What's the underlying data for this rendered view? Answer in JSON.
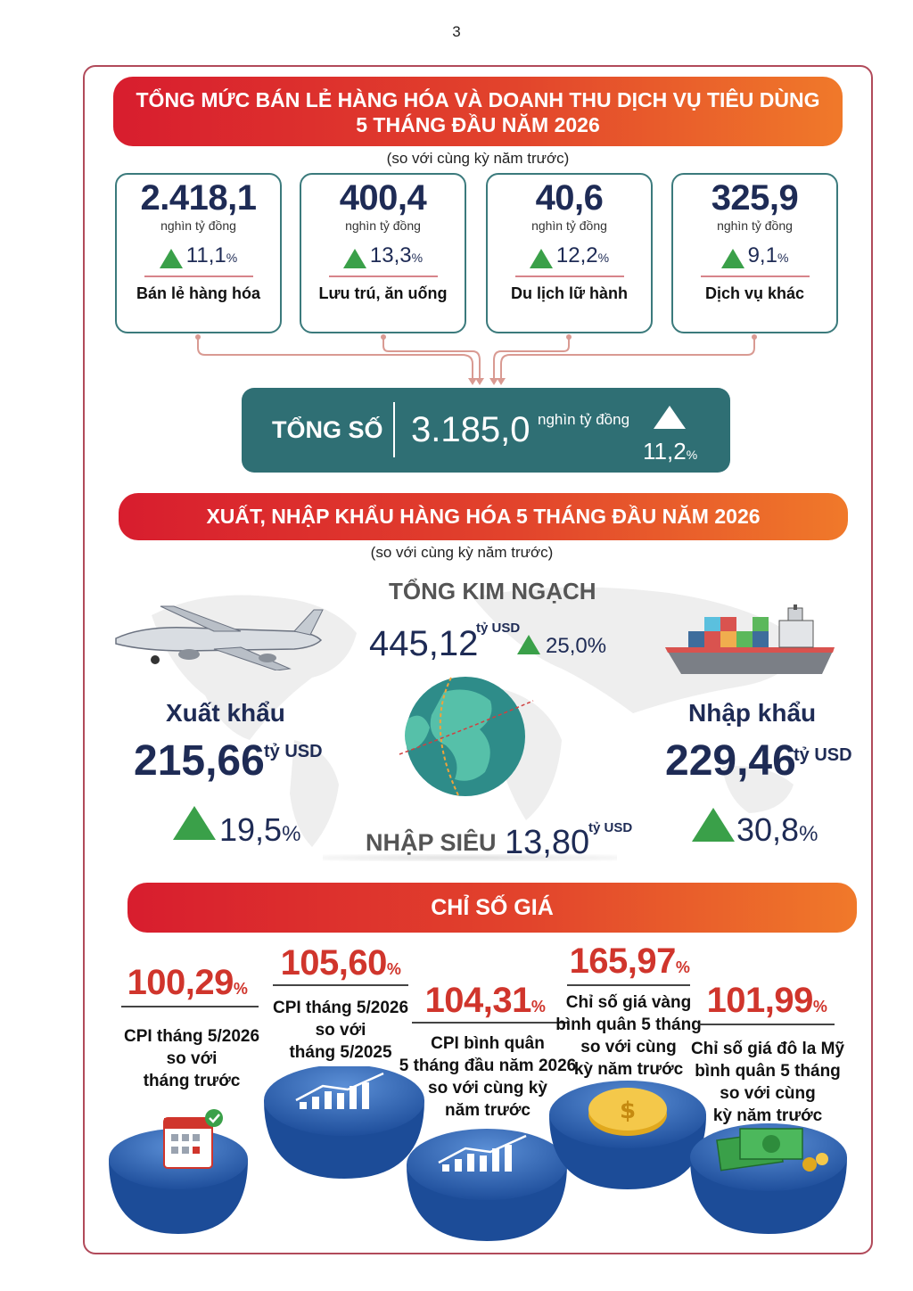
{
  "page_number": "3",
  "retail": {
    "title_line1": "TỔNG MỨC BÁN LẺ HÀNG HÓA VÀ DOANH THU DỊCH VỤ TIÊU DÙNG",
    "title_line2": "5 THÁNG ĐẦU NĂM 2026",
    "note": "(so với cùng kỳ năm trước)",
    "cards": [
      {
        "value": "2.418,1",
        "unit": "nghìn tỷ đồng",
        "pct": "11,1",
        "pct_sign": "%",
        "label": "Bán lẻ hàng hóa"
      },
      {
        "value": "400,4",
        "unit": "nghìn tỷ đồng",
        "pct": "13,3",
        "pct_sign": "%",
        "label": "Lưu trú, ăn uống"
      },
      {
        "value": "40,6",
        "unit": "nghìn tỷ đồng",
        "pct": "12,2",
        "pct_sign": "%",
        "label": "Du lịch lữ hành"
      },
      {
        "value": "325,9",
        "unit": "nghìn tỷ đồng",
        "pct": "9,1",
        "pct_sign": "%",
        "label": "Dịch vụ khác"
      }
    ],
    "total": {
      "label": "TỔNG SỐ",
      "value": "3.185,0",
      "unit": "nghìn tỷ đồng",
      "pct": "11,2",
      "pct_sign": "%"
    }
  },
  "trade": {
    "title": "XUẤT, NHẬP KHẨU HÀNG HÓA 5 THÁNG ĐẦU NĂM 2026",
    "note": "(so với cùng kỳ năm trước)",
    "total_label": "TỔNG KIM NGẠCH",
    "total_value": "445,12",
    "total_unit": "tỷ USD",
    "total_pct": "25,0%",
    "export": {
      "label": "Xuất khẩu",
      "value": "215,66",
      "unit": "tỷ USD",
      "pct": "19,5",
      "pct_sign": "%"
    },
    "import": {
      "label": "Nhập khẩu",
      "value": "229,46",
      "unit": "tỷ USD",
      "pct": "30,8",
      "pct_sign": "%"
    },
    "deficit": {
      "label": "NHẬP SIÊU",
      "value": "13,80",
      "unit": "tỷ USD"
    }
  },
  "prices": {
    "title": "CHỈ SỐ GIÁ",
    "items": [
      {
        "value": "100,29",
        "pct_sign": "%",
        "desc": [
          "CPI tháng 5/2026",
          "so với",
          "tháng trước"
        ]
      },
      {
        "value": "105,60",
        "pct_sign": "%",
        "desc": [
          "CPI tháng 5/2026",
          "so với",
          "tháng 5/2025"
        ]
      },
      {
        "value": "104,31",
        "pct_sign": "%",
        "desc": [
          "CPI bình quân",
          "5 tháng đầu năm 2026",
          "so với cùng kỳ",
          "năm trước"
        ]
      },
      {
        "value": "165,97",
        "pct_sign": "%",
        "desc": [
          "Chỉ số giá vàng",
          "bình quân 5 tháng",
          "so với cùng",
          "kỳ năm trước"
        ]
      },
      {
        "value": "101,99",
        "pct_sign": "%",
        "desc": [
          "Chỉ số giá đô la Mỹ",
          "bình quân 5 tháng",
          "so với cùng",
          "kỳ năm trước"
        ]
      }
    ]
  },
  "colors": {
    "accent_red": "#d81d2e",
    "accent_orange": "#f0792a",
    "teal": "#2f6f74",
    "navy": "#1e2b55",
    "up_green": "#3aa049"
  }
}
